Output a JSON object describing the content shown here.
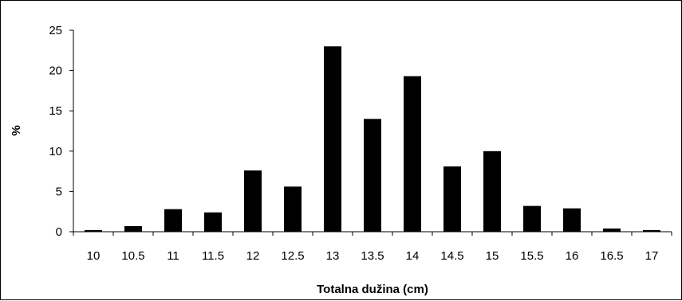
{
  "chart_data": {
    "type": "bar",
    "categories": [
      "10",
      "10.5",
      "11",
      "11.5",
      "12",
      "12.5",
      "13",
      "13.5",
      "14",
      "14.5",
      "15",
      "15.5",
      "16",
      "16.5",
      "17"
    ],
    "values": [
      0.2,
      0.7,
      2.8,
      2.4,
      7.6,
      5.6,
      23.0,
      14.0,
      19.3,
      8.1,
      10.0,
      3.2,
      2.9,
      0.4,
      0.2
    ],
    "title": "",
    "xlabel": "Totalna dužina (cm)",
    "ylabel": "%",
    "ylim": [
      0,
      25
    ],
    "yticks": [
      0,
      5,
      10,
      15,
      20,
      25
    ],
    "grid": false,
    "legend": "none",
    "bar_color": "#000000"
  }
}
